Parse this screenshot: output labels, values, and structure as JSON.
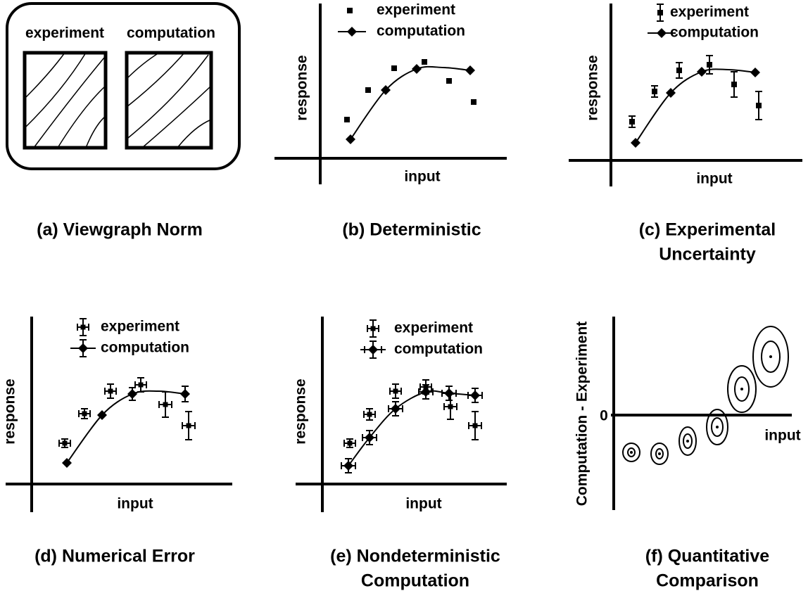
{
  "panels": [
    {
      "caption": [
        "(a) Viewgraph Norm"
      ],
      "labels": [
        "experiment",
        "computation"
      ]
    },
    {
      "caption": [
        "(b) Deterministic"
      ],
      "legend": [
        "experiment",
        "computation"
      ],
      "ylabel": "response",
      "xlabel": "input"
    },
    {
      "caption": [
        "(c) Experimental",
        "Uncertainty"
      ],
      "legend": [
        "experiment",
        "computation"
      ],
      "ylabel": "response",
      "xlabel": "input"
    },
    {
      "caption": [
        "(d) Numerical Error"
      ],
      "legend": [
        "experiment",
        "computation"
      ],
      "ylabel": "response",
      "xlabel": "input"
    },
    {
      "caption": [
        "(e) Nondeterministic",
        "Computation"
      ],
      "legend": [
        "experiment",
        "computation"
      ],
      "ylabel": "response",
      "xlabel": "input"
    },
    {
      "caption": [
        "(f) Quantitative",
        "Comparison"
      ],
      "ylabel": "Computation - Experiment",
      "xlabel": "input",
      "zero": "0"
    }
  ]
}
